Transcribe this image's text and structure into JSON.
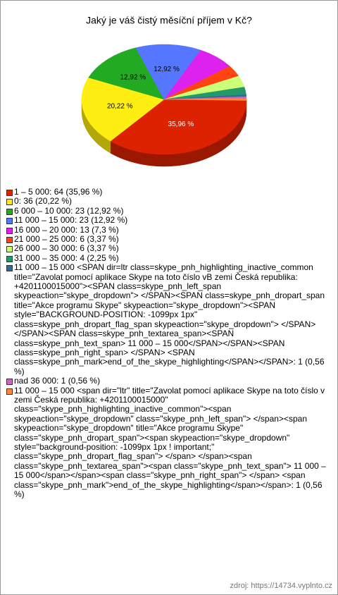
{
  "chart_data": {
    "type": "pie",
    "title": "Jaký je váš čistý měsíční příjem v Kč?",
    "categories": [
      "1 – 5 000: 64 (35,96 %)",
      "0: 36 (20,22 %)",
      "6 000 – 10 000: 23 (12,92 %)",
      "11 000 – 15 000: 23 (12,92 %)",
      "16 000 – 20 000: 13 (7,3 %)",
      "21 000 – 25 000: 6 (3,37 %)",
      "26 000 – 30 000: 6 (3,37 %)",
      "31 000 – 35 000: 4 (2,25 %)",
      "11 000 – 15 000 <SPAN dir=ltr class=skype_pnh_highlighting_inactive_common title=\"Zavolat pomocí aplikace Skype na toto číslo vB zemi Česká republika: +4201100015000\"><SPAN class=skype_pnh_left_span skypeaction=\"skype_dropdown\">  </SPAN><SPAN class=skype_pnh_dropart_span title=\"Akce programu Skype\" skypeaction=\"skype_dropdown\"><SPAN style=\"BACKGROUND-POSITION: -1099px 1px\" class=skype_pnh_dropart_flag_span skypeaction=\"skype_dropdown\">      </SPAN>   </SPAN><SPAN class=skype_pnh_textarea_span><SPAN class=skype_pnh_text_span>  11 000 – 15 000</SPAN></SPAN><SPAN class=skype_pnh_right_span>      </SPAN> <SPAN class=skype_pnh_mark>end_of_the_skype_highlighting</SPAN></SPAN>: 1 (0,56 %)",
      "nad 36 000: 1 (0,56 %)",
      "11 000 – 15 000 <span dir=\"ltr\" title=\"Zavolat pomocí aplikace Skype na toto číslo v zemi Česká republika: +4201100015000\" class=\"skype_pnh_highlighting_inactive_common\"><span skypeaction=\"skype_dropdown\" class=\"skype_pnh_left_span\">  </span><span skypeaction=\"skype_dropdown\" title=\"Akce programu Skype\" class=\"skype_pnh_dropart_span\"><span skypeaction=\"skype_dropdown\" style=\"background-position: -1099px 1px ! important;\" class=\"skype_pnh_dropart_flag_span\">      </span>   </span><span class=\"skype_pnh_textarea_span\"><span class=\"skype_pnh_text_span\">  11 000 – 15 000</span></span><span class=\"skype_pnh_right_span\">      </span> <span class=\"skype_pnh_mark\">end_of_the_skype_highlighting</span></span>: 1 (0,56 %)"
    ],
    "values": [
      35.96,
      20.22,
      12.92,
      12.92,
      7.3,
      3.37,
      3.37,
      2.25,
      0.56,
      0.56,
      0.56
    ],
    "value_labels": [
      "35,96 %",
      "20,22 %",
      "12,92 %",
      "12,92 %",
      null,
      null,
      null,
      null,
      null,
      null,
      null
    ],
    "colors": [
      "#dd2200",
      "#ffee11",
      "#22aa22",
      "#5577ff",
      "#dd22ee",
      "#ff4411",
      "#ccff77",
      "#22996b",
      "#336699",
      "#cc66bb",
      "#ff8833"
    ],
    "source": "zdroj: https://14734.vyplnto.cz"
  }
}
